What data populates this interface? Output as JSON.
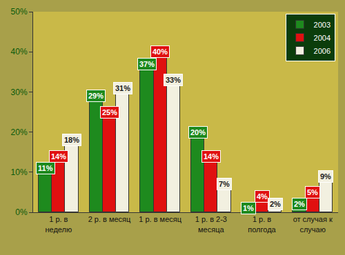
{
  "chart_data": {
    "type": "bar",
    "categories": [
      "1 р. в неделю",
      "2 р. в месяц",
      "1 р. в месяц",
      "1 р. в 2-3 месяца",
      "1 р. в полгода",
      "от случая к случаю"
    ],
    "series": [
      {
        "name": "2003",
        "color": "#1e8a1e",
        "values": [
          11,
          29,
          37,
          20,
          1,
          2
        ],
        "value_labels": [
          "11%",
          "29%",
          "37%",
          "20%",
          "1%",
          "2%"
        ]
      },
      {
        "name": "2004",
        "color": "#e01010",
        "values": [
          14,
          25,
          40,
          14,
          4,
          5
        ],
        "value_labels": [
          "14%",
          "25%",
          "40%",
          "14%",
          "4%",
          "5%"
        ]
      },
      {
        "name": "2006",
        "color": "#f2f0e0",
        "values": [
          18,
          31,
          33,
          7,
          2,
          9
        ],
        "value_labels": [
          "18%",
          "31%",
          "33%",
          "7%",
          "2%",
          "9%"
        ]
      }
    ],
    "ylim": [
      0,
      50
    ],
    "yticks": [
      {
        "value": 0,
        "label": "0%"
      },
      {
        "value": 10,
        "label": "10%"
      },
      {
        "value": 20,
        "label": "20%"
      },
      {
        "value": 30,
        "label": "30%"
      },
      {
        "value": 40,
        "label": "40%"
      },
      {
        "value": 50,
        "label": "50%"
      }
    ],
    "grid": false,
    "legend": "upper right",
    "data_labels": true
  }
}
